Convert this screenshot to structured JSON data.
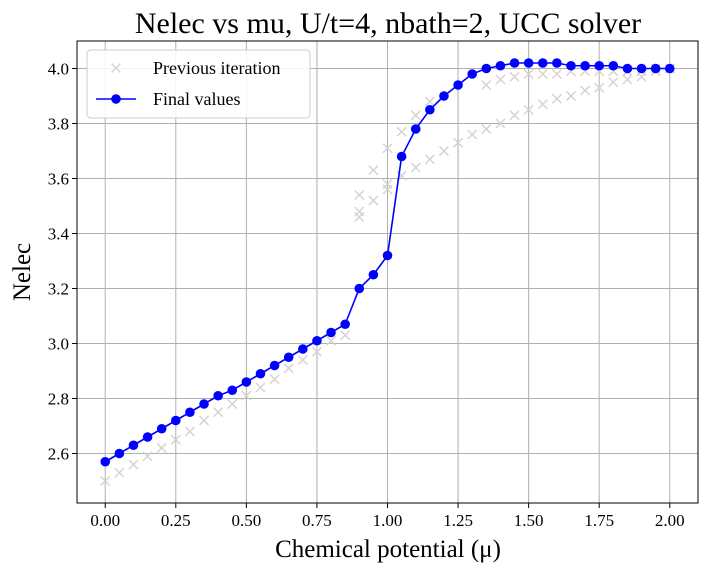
{
  "chart_data": {
    "type": "line",
    "title": "Nelec vs mu, U/t=4, nbath=2, UCC solver",
    "xlabel": "Chemical potential (μ)",
    "ylabel": "Nelec",
    "xlim": [
      -0.1,
      2.1
    ],
    "ylim": [
      2.42,
      4.1
    ],
    "xticks": [
      "0.00",
      "0.25",
      "0.50",
      "0.75",
      "1.00",
      "1.25",
      "1.50",
      "1.75",
      "2.00"
    ],
    "yticks": [
      "2.6",
      "2.8",
      "3.0",
      "3.2",
      "3.4",
      "3.6",
      "3.8",
      "4.0"
    ],
    "grid": true,
    "legend_position": "top-left",
    "series": [
      {
        "name": "Previous iteration",
        "color": "#d3d3d3",
        "marker": "x",
        "line": false,
        "x": [
          0.0,
          0.05,
          0.1,
          0.15,
          0.2,
          0.25,
          0.3,
          0.35,
          0.4,
          0.45,
          0.5,
          0.55,
          0.6,
          0.65,
          0.7,
          0.75,
          0.8,
          0.85,
          0.9,
          0.9,
          0.9,
          0.95,
          0.95,
          1.0,
          1.0,
          1.0,
          1.05,
          1.05,
          1.1,
          1.1,
          1.15,
          1.15,
          1.2,
          1.25,
          1.3,
          1.35,
          1.35,
          1.4,
          1.4,
          1.45,
          1.45,
          1.5,
          1.5,
          1.55,
          1.55,
          1.6,
          1.6,
          1.65,
          1.65,
          1.7,
          1.7,
          1.75,
          1.75,
          1.8,
          1.8,
          1.85,
          1.85,
          1.9,
          1.9,
          1.95,
          1.95,
          2.0
        ],
        "y": [
          2.5,
          2.53,
          2.56,
          2.59,
          2.62,
          2.65,
          2.68,
          2.72,
          2.75,
          2.78,
          2.81,
          2.84,
          2.87,
          2.91,
          2.94,
          2.97,
          3.01,
          3.03,
          3.46,
          3.48,
          3.54,
          3.52,
          3.63,
          3.56,
          3.58,
          3.71,
          3.61,
          3.77,
          3.64,
          3.83,
          3.67,
          3.88,
          3.7,
          3.73,
          3.76,
          3.78,
          3.94,
          3.8,
          3.96,
          3.83,
          3.97,
          3.85,
          3.98,
          3.87,
          3.98,
          3.89,
          3.98,
          3.9,
          3.99,
          3.92,
          3.99,
          3.93,
          3.99,
          3.95,
          3.99,
          3.96,
          3.99,
          3.97,
          3.99,
          3.99,
          4.0,
          4.0
        ]
      },
      {
        "name": "Final values",
        "color": "#0000ff",
        "marker": "o",
        "line": true,
        "x": [
          0.0,
          0.05,
          0.1,
          0.15,
          0.2,
          0.25,
          0.3,
          0.35,
          0.4,
          0.45,
          0.5,
          0.55,
          0.6,
          0.65,
          0.7,
          0.75,
          0.8,
          0.85,
          0.9,
          0.95,
          1.0,
          1.05,
          1.1,
          1.15,
          1.2,
          1.25,
          1.3,
          1.35,
          1.4,
          1.45,
          1.5,
          1.55,
          1.6,
          1.65,
          1.7,
          1.75,
          1.8,
          1.85,
          1.9,
          1.95,
          2.0
        ],
        "y": [
          2.57,
          2.6,
          2.63,
          2.66,
          2.69,
          2.72,
          2.75,
          2.78,
          2.81,
          2.83,
          2.86,
          2.89,
          2.92,
          2.95,
          2.98,
          3.01,
          3.04,
          3.07,
          3.2,
          3.25,
          3.32,
          3.68,
          3.78,
          3.85,
          3.9,
          3.94,
          3.98,
          4.0,
          4.01,
          4.02,
          4.02,
          4.02,
          4.02,
          4.01,
          4.01,
          4.01,
          4.01,
          4.0,
          4.0,
          4.0,
          4.0
        ]
      }
    ]
  }
}
